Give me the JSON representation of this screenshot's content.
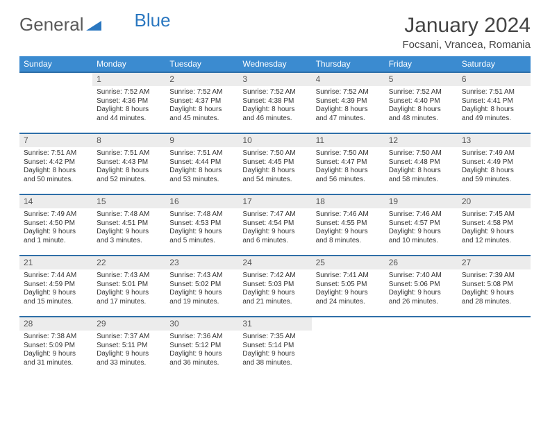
{
  "logo": {
    "part1": "General",
    "part2": "Blue"
  },
  "header": {
    "month_title": "January 2024",
    "location": "Focsani, Vrancea, Romania"
  },
  "colors": {
    "header_bg": "#3b8bd0",
    "row_border": "#2f6fa8",
    "daynum_bg": "#ececec"
  },
  "day_headers": [
    "Sunday",
    "Monday",
    "Tuesday",
    "Wednesday",
    "Thursday",
    "Friday",
    "Saturday"
  ],
  "weeks": [
    [
      {
        "num": "",
        "sunrise": "",
        "sunset": "",
        "daylight": ""
      },
      {
        "num": "1",
        "sunrise": "Sunrise: 7:52 AM",
        "sunset": "Sunset: 4:36 PM",
        "daylight": "Daylight: 8 hours and 44 minutes."
      },
      {
        "num": "2",
        "sunrise": "Sunrise: 7:52 AM",
        "sunset": "Sunset: 4:37 PM",
        "daylight": "Daylight: 8 hours and 45 minutes."
      },
      {
        "num": "3",
        "sunrise": "Sunrise: 7:52 AM",
        "sunset": "Sunset: 4:38 PM",
        "daylight": "Daylight: 8 hours and 46 minutes."
      },
      {
        "num": "4",
        "sunrise": "Sunrise: 7:52 AM",
        "sunset": "Sunset: 4:39 PM",
        "daylight": "Daylight: 8 hours and 47 minutes."
      },
      {
        "num": "5",
        "sunrise": "Sunrise: 7:52 AM",
        "sunset": "Sunset: 4:40 PM",
        "daylight": "Daylight: 8 hours and 48 minutes."
      },
      {
        "num": "6",
        "sunrise": "Sunrise: 7:51 AM",
        "sunset": "Sunset: 4:41 PM",
        "daylight": "Daylight: 8 hours and 49 minutes."
      }
    ],
    [
      {
        "num": "7",
        "sunrise": "Sunrise: 7:51 AM",
        "sunset": "Sunset: 4:42 PM",
        "daylight": "Daylight: 8 hours and 50 minutes."
      },
      {
        "num": "8",
        "sunrise": "Sunrise: 7:51 AM",
        "sunset": "Sunset: 4:43 PM",
        "daylight": "Daylight: 8 hours and 52 minutes."
      },
      {
        "num": "9",
        "sunrise": "Sunrise: 7:51 AM",
        "sunset": "Sunset: 4:44 PM",
        "daylight": "Daylight: 8 hours and 53 minutes."
      },
      {
        "num": "10",
        "sunrise": "Sunrise: 7:50 AM",
        "sunset": "Sunset: 4:45 PM",
        "daylight": "Daylight: 8 hours and 54 minutes."
      },
      {
        "num": "11",
        "sunrise": "Sunrise: 7:50 AM",
        "sunset": "Sunset: 4:47 PM",
        "daylight": "Daylight: 8 hours and 56 minutes."
      },
      {
        "num": "12",
        "sunrise": "Sunrise: 7:50 AM",
        "sunset": "Sunset: 4:48 PM",
        "daylight": "Daylight: 8 hours and 58 minutes."
      },
      {
        "num": "13",
        "sunrise": "Sunrise: 7:49 AM",
        "sunset": "Sunset: 4:49 PM",
        "daylight": "Daylight: 8 hours and 59 minutes."
      }
    ],
    [
      {
        "num": "14",
        "sunrise": "Sunrise: 7:49 AM",
        "sunset": "Sunset: 4:50 PM",
        "daylight": "Daylight: 9 hours and 1 minute."
      },
      {
        "num": "15",
        "sunrise": "Sunrise: 7:48 AM",
        "sunset": "Sunset: 4:51 PM",
        "daylight": "Daylight: 9 hours and 3 minutes."
      },
      {
        "num": "16",
        "sunrise": "Sunrise: 7:48 AM",
        "sunset": "Sunset: 4:53 PM",
        "daylight": "Daylight: 9 hours and 5 minutes."
      },
      {
        "num": "17",
        "sunrise": "Sunrise: 7:47 AM",
        "sunset": "Sunset: 4:54 PM",
        "daylight": "Daylight: 9 hours and 6 minutes."
      },
      {
        "num": "18",
        "sunrise": "Sunrise: 7:46 AM",
        "sunset": "Sunset: 4:55 PM",
        "daylight": "Daylight: 9 hours and 8 minutes."
      },
      {
        "num": "19",
        "sunrise": "Sunrise: 7:46 AM",
        "sunset": "Sunset: 4:57 PM",
        "daylight": "Daylight: 9 hours and 10 minutes."
      },
      {
        "num": "20",
        "sunrise": "Sunrise: 7:45 AM",
        "sunset": "Sunset: 4:58 PM",
        "daylight": "Daylight: 9 hours and 12 minutes."
      }
    ],
    [
      {
        "num": "21",
        "sunrise": "Sunrise: 7:44 AM",
        "sunset": "Sunset: 4:59 PM",
        "daylight": "Daylight: 9 hours and 15 minutes."
      },
      {
        "num": "22",
        "sunrise": "Sunrise: 7:43 AM",
        "sunset": "Sunset: 5:01 PM",
        "daylight": "Daylight: 9 hours and 17 minutes."
      },
      {
        "num": "23",
        "sunrise": "Sunrise: 7:43 AM",
        "sunset": "Sunset: 5:02 PM",
        "daylight": "Daylight: 9 hours and 19 minutes."
      },
      {
        "num": "24",
        "sunrise": "Sunrise: 7:42 AM",
        "sunset": "Sunset: 5:03 PM",
        "daylight": "Daylight: 9 hours and 21 minutes."
      },
      {
        "num": "25",
        "sunrise": "Sunrise: 7:41 AM",
        "sunset": "Sunset: 5:05 PM",
        "daylight": "Daylight: 9 hours and 24 minutes."
      },
      {
        "num": "26",
        "sunrise": "Sunrise: 7:40 AM",
        "sunset": "Sunset: 5:06 PM",
        "daylight": "Daylight: 9 hours and 26 minutes."
      },
      {
        "num": "27",
        "sunrise": "Sunrise: 7:39 AM",
        "sunset": "Sunset: 5:08 PM",
        "daylight": "Daylight: 9 hours and 28 minutes."
      }
    ],
    [
      {
        "num": "28",
        "sunrise": "Sunrise: 7:38 AM",
        "sunset": "Sunset: 5:09 PM",
        "daylight": "Daylight: 9 hours and 31 minutes."
      },
      {
        "num": "29",
        "sunrise": "Sunrise: 7:37 AM",
        "sunset": "Sunset: 5:11 PM",
        "daylight": "Daylight: 9 hours and 33 minutes."
      },
      {
        "num": "30",
        "sunrise": "Sunrise: 7:36 AM",
        "sunset": "Sunset: 5:12 PM",
        "daylight": "Daylight: 9 hours and 36 minutes."
      },
      {
        "num": "31",
        "sunrise": "Sunrise: 7:35 AM",
        "sunset": "Sunset: 5:14 PM",
        "daylight": "Daylight: 9 hours and 38 minutes."
      },
      {
        "num": "",
        "sunrise": "",
        "sunset": "",
        "daylight": ""
      },
      {
        "num": "",
        "sunrise": "",
        "sunset": "",
        "daylight": ""
      },
      {
        "num": "",
        "sunrise": "",
        "sunset": "",
        "daylight": ""
      }
    ]
  ]
}
